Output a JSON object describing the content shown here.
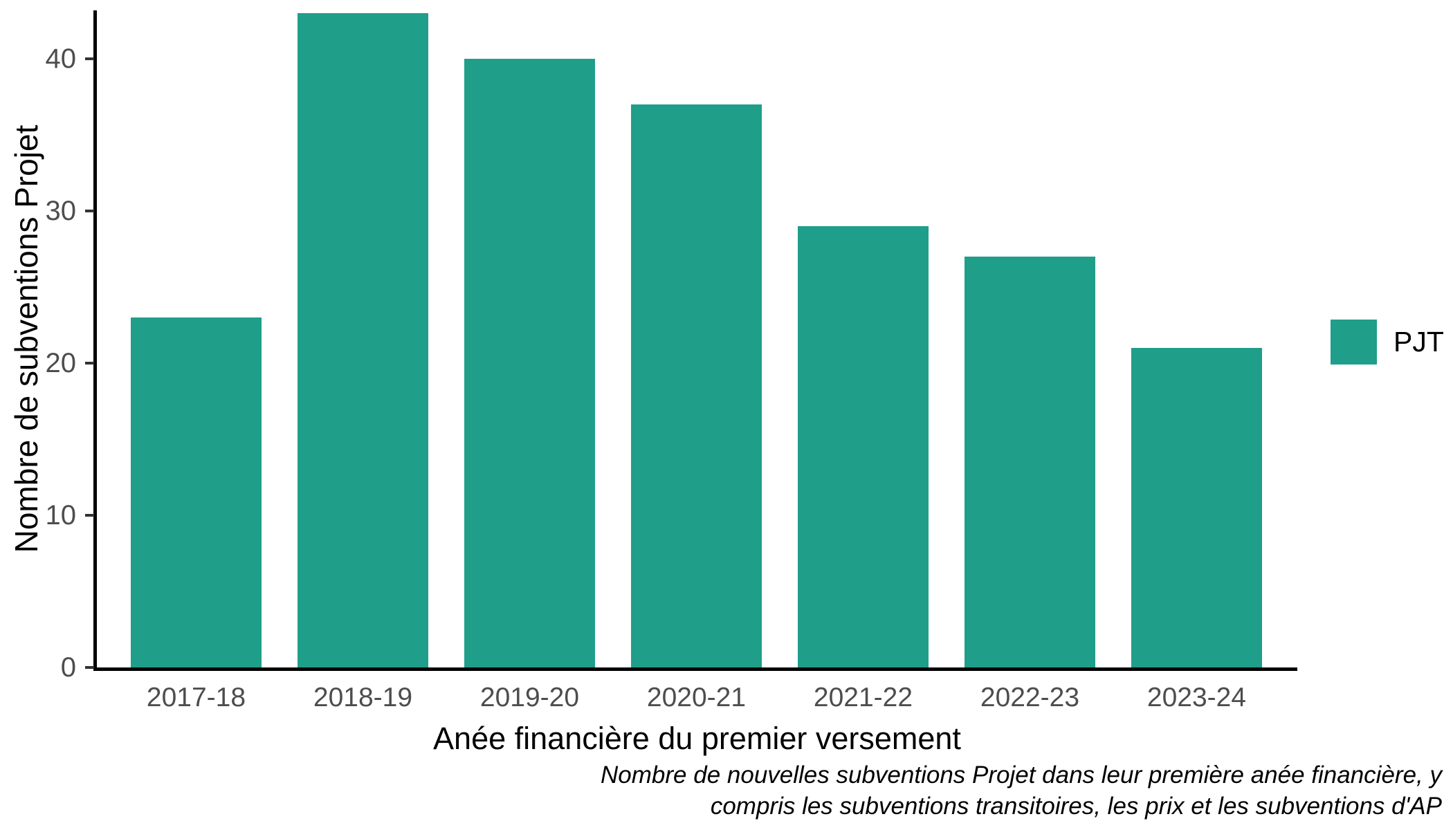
{
  "chart_data": {
    "type": "bar",
    "categories": [
      "2017-18",
      "2018-19",
      "2019-20",
      "2020-21",
      "2021-22",
      "2022-23",
      "2023-24"
    ],
    "values": [
      23,
      43,
      40,
      37,
      29,
      27,
      21
    ],
    "series_name": "PJT",
    "title": "",
    "xlabel": "Anée financière du premier versement",
    "ylabel": "Nombre de subventions Projet",
    "yticks": [
      0,
      10,
      20,
      30,
      40
    ],
    "ylim": [
      0,
      43.2
    ],
    "bar_color": "#1F9E89",
    "grid": "off",
    "legend_position": "right",
    "legend_labels": [
      "PJT"
    ],
    "caption_lines": [
      "Nombre de nouvelles subventions Projet dans leur première anée financière, y",
      "compris les subventions transitoires, les prix et les subventions d'AP"
    ]
  },
  "colors": {
    "bar": "#1F9E89",
    "axis_line": "#000000",
    "tick_mark": "#333333",
    "tick_label": "#4d4d4d",
    "text": "#000000",
    "background": "#ffffff"
  }
}
